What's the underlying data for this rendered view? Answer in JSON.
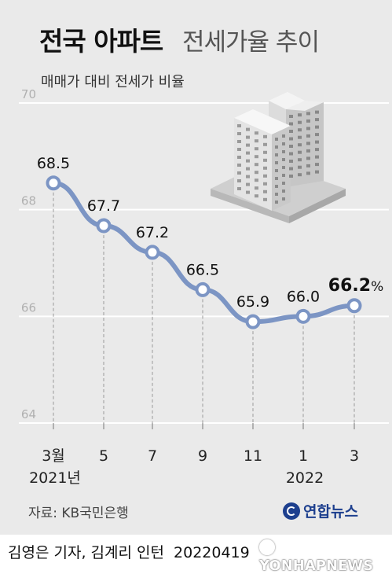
{
  "title": {
    "bold": "전국 아파트",
    "light": "전세가율 추이"
  },
  "subtitle": "매매가 대비 전세가 비율",
  "chart_data": {
    "type": "line",
    "categories": [
      "3월",
      "5",
      "7",
      "9",
      "11",
      "1",
      "3"
    ],
    "year_labels": [
      "2021년",
      "2022"
    ],
    "values": [
      68.5,
      67.7,
      67.2,
      66.5,
      65.9,
      66.0,
      66.2
    ],
    "data_labels": [
      "68.5",
      "67.7",
      "67.2",
      "66.5",
      "65.9",
      "66.0",
      "66.2"
    ],
    "last_label_unit": "%",
    "ylim": [
      64,
      70
    ],
    "yticks": [
      "70",
      "68",
      "66",
      "64"
    ],
    "grid": true,
    "line_color": "#7c95c4",
    "marker_fill": "#ffffff",
    "highlight_last": true
  },
  "source": "자료: KB국민은행",
  "agency": "연합뉴스",
  "credit": {
    "authors": "김영은 기자, 김계리 인턴",
    "date": "20220419"
  },
  "watermark": "YONHAPNEWS",
  "colors": {
    "panel": "#eaeaea",
    "line": "#7c95c4",
    "grid": "#ffffff",
    "brand": "#1d3f8e"
  },
  "icons": [
    "apartment-buildings-illustration",
    "yonhap-logo-icon"
  ]
}
